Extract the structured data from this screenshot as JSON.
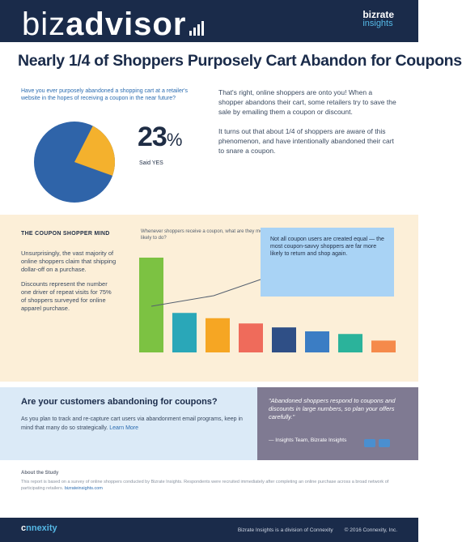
{
  "header": {
    "logo_light": "biz",
    "logo_bold": "advisor",
    "brand_name": "bizrate",
    "brand_sub": "insights"
  },
  "title": "Nearly 1/4 of Shoppers Purposely Cart Abandon for Coupons",
  "top": {
    "question": "Have you ever purposely abandoned a shopping cart at a retailer's website in the hopes of receiving a coupon in the near future?",
    "percent_value": "23",
    "percent_sign": "%",
    "percent_label": "Said YES",
    "right_p1": "That's right, online shoppers are onto you! When a shopper abandons their cart, some retailers try to save the sale by emailing them a coupon or discount.",
    "right_p2": "It turns out that about 1/4 of shoppers are aware of this phenomenon, and have intentionally abandoned their cart to snare a coupon."
  },
  "middle": {
    "title": "THE COUPON SHOPPER MIND",
    "left_p1": "Unsurprisingly, the vast majority of online shoppers claim that shipping dollar-off on a purchase.",
    "left_p2": "Discounts represent the number one driver of repeat visits for 75% of shoppers surveyed for online apparel purchase.",
    "chart_sub": "Whenever shoppers receive a coupon, what are they most likely to do?",
    "callout": "Not all coupon users are created equal — the most coupon-savvy shoppers are far more likely to return and shop again."
  },
  "chart_data": {
    "type": "bar",
    "categories": [
      "",
      "",
      "",
      "",
      "",
      "",
      "",
      ""
    ],
    "values": [
      72,
      30,
      26,
      22,
      19,
      16,
      14,
      9
    ],
    "colors": [
      "#7cc242",
      "#2aa7b8",
      "#f6a623",
      "#ef6b5b",
      "#2f4f86",
      "#3b7dc4",
      "#2bb39b",
      "#f58a4b"
    ],
    "ylim": [
      0,
      80
    ]
  },
  "lower": {
    "title": "Are your customers abandoning for coupons?",
    "text": "As you plan to track and re-capture cart users via abandonment email programs, keep in mind that many do so strategically.",
    "link": "Learn More",
    "quote": "\"Abandoned shoppers respond to coupons and discounts in large numbers, so plan your offers carefully.\"",
    "author": "— Insights Team, Bizrate Insights"
  },
  "method": {
    "title": "About the Study",
    "text": "This report is based on a survey of online shoppers conducted by Bizrate Insights. Respondents were recruited immediately after completing an online purchase across a broad network of participating retailers.",
    "link": "bizrateinsights.com"
  },
  "footer": {
    "logo_prefix": "c",
    "logo_bold": "nnexity",
    "left_note": "Bizrate Insights is a division of Connexity",
    "right_note": "© 2016 Connexity, Inc."
  }
}
